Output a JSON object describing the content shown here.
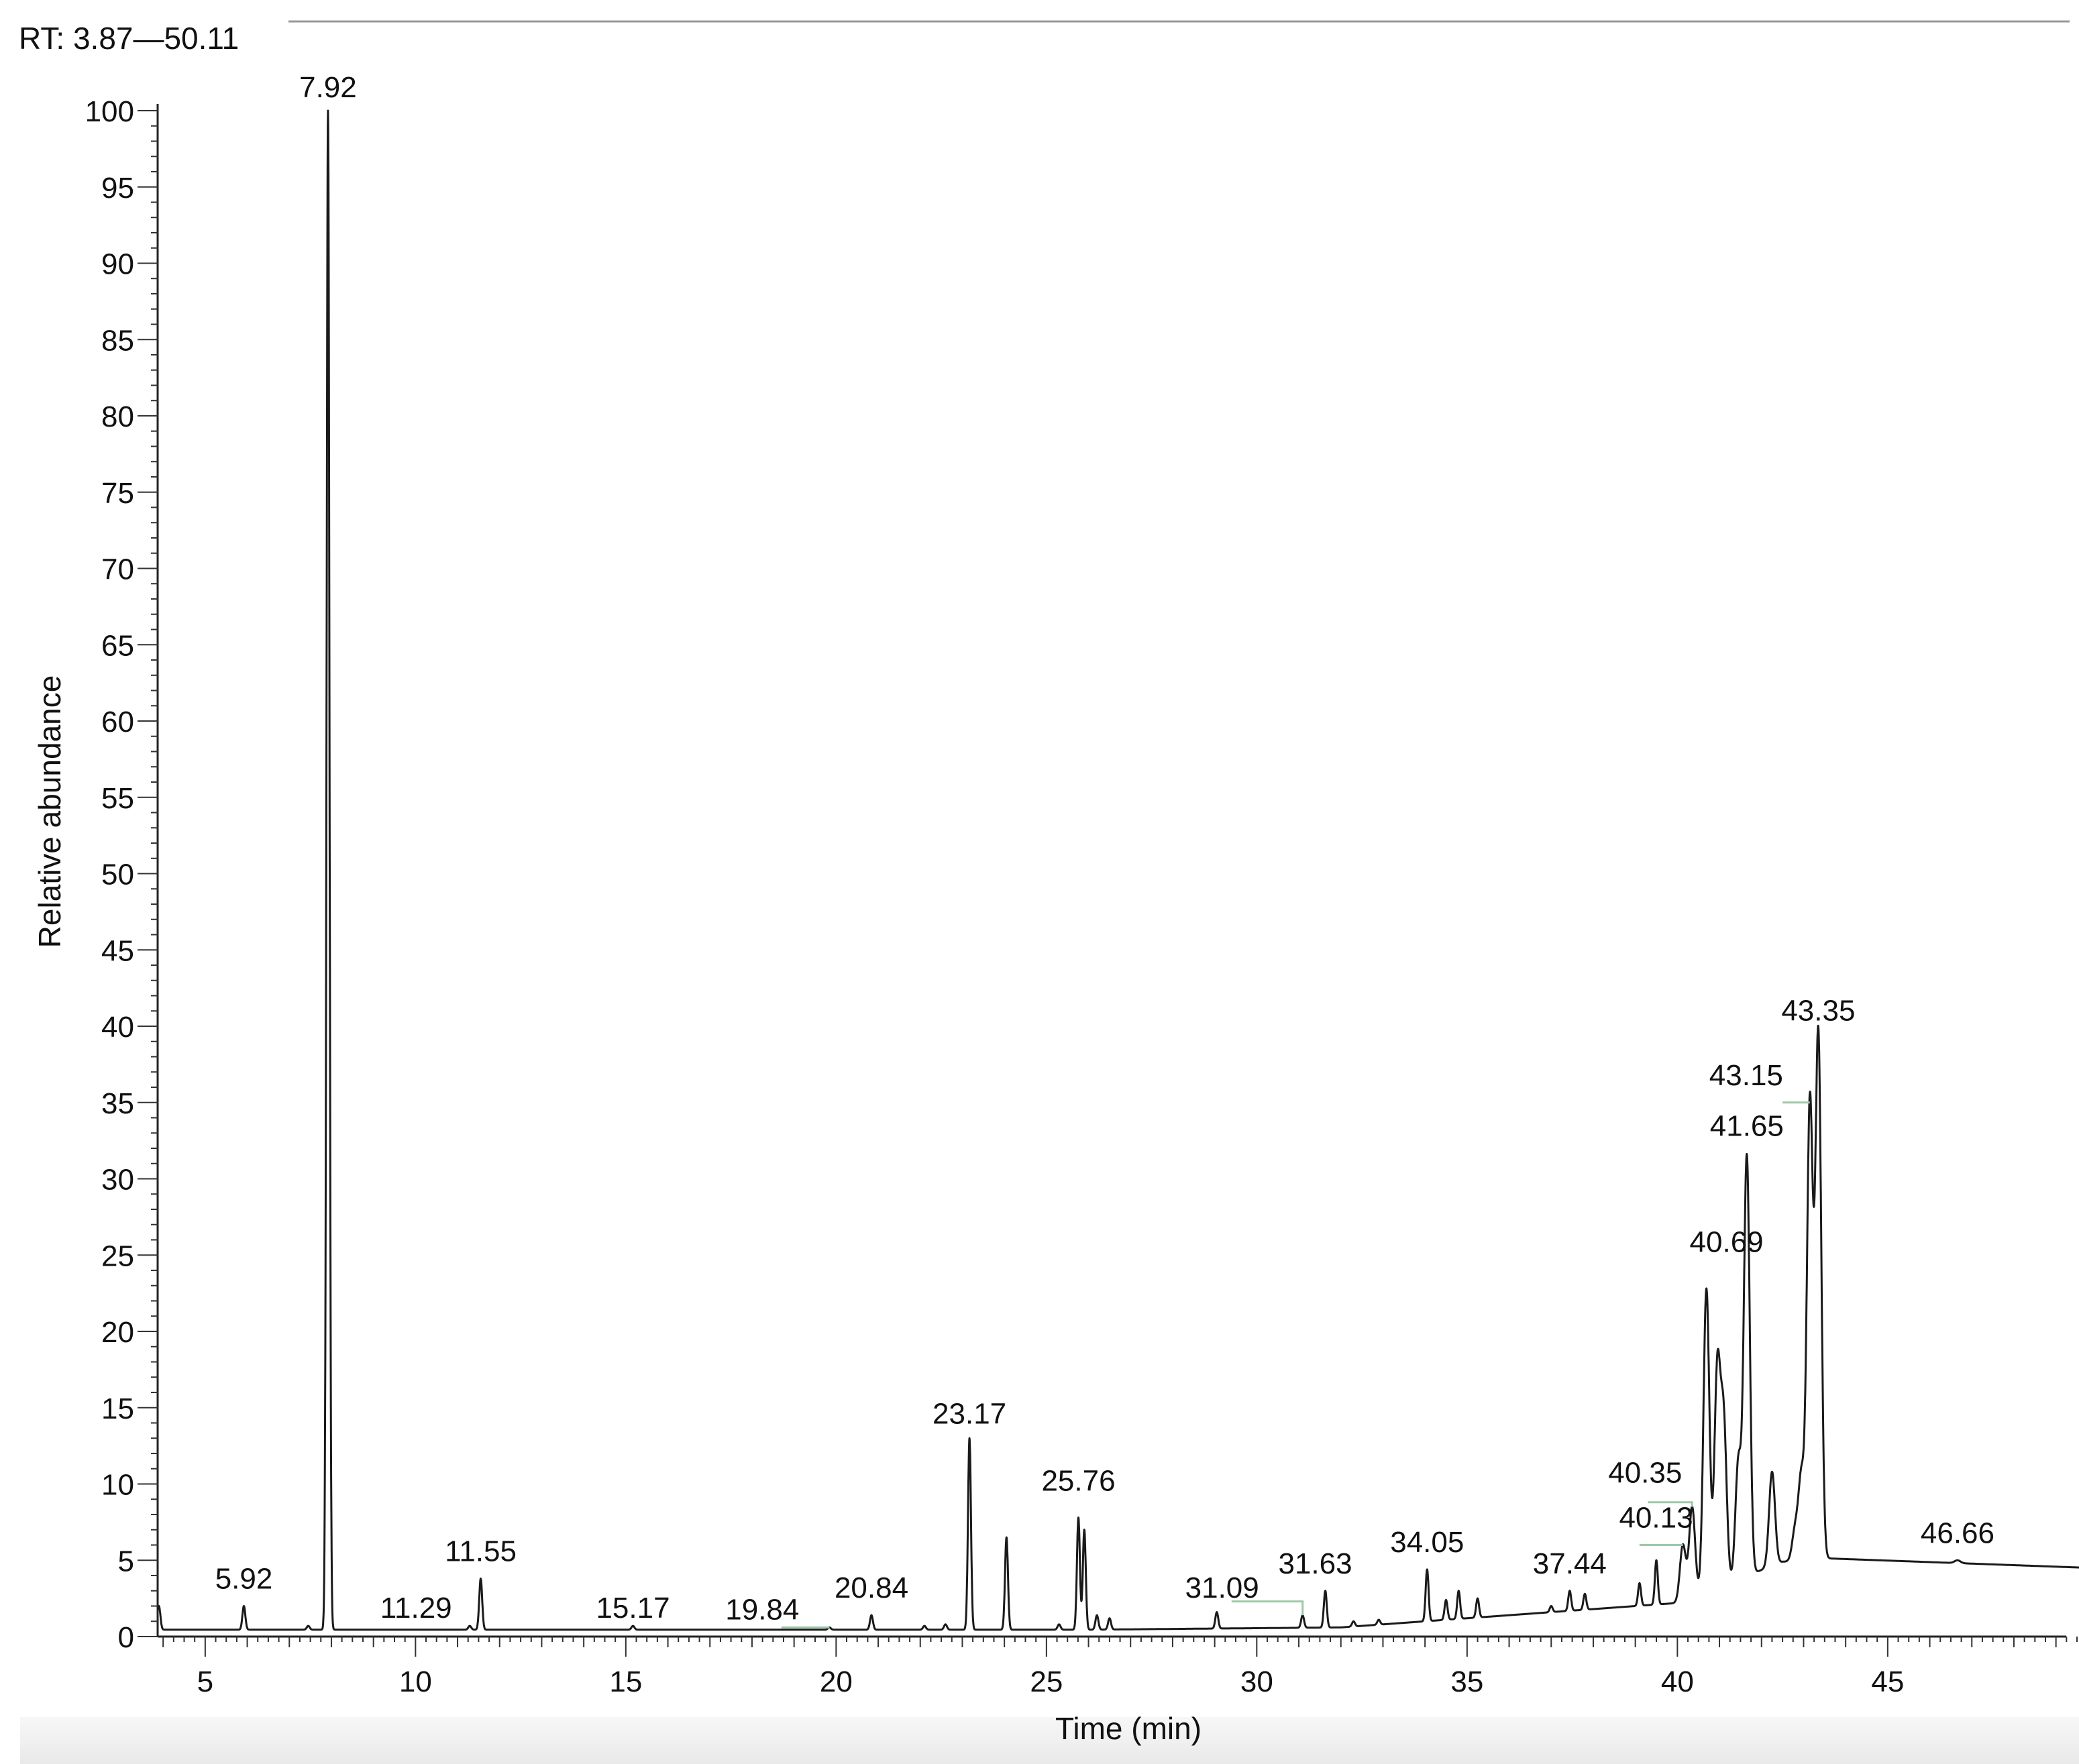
{
  "range_label": "RT: 3.87—50.11",
  "chart_data": {
    "type": "line",
    "title": "",
    "xlabel": "Time (min)",
    "ylabel": "Relative abundance",
    "xlim": [
      3.87,
      49.6
    ],
    "ylim": [
      0,
      100
    ],
    "x_ticks": [
      "5",
      "10",
      "15",
      "20",
      "25",
      "30",
      "35",
      "40",
      "45"
    ],
    "y_ticks": [
      "0",
      "5",
      "10",
      "15",
      "20",
      "25",
      "30",
      "35",
      "40",
      "45",
      "50",
      "55",
      "60",
      "65",
      "70",
      "75",
      "80",
      "85",
      "90",
      "95",
      "100"
    ],
    "grid": false,
    "legend": "none",
    "line_color": "#1a1a1a",
    "series": [
      {
        "peaks": [
          {
            "x": 3.9,
            "y": 2.0
          },
          {
            "x": 5.0,
            "y": 0.4
          },
          {
            "x": 5.92,
            "y": 2.0
          },
          {
            "x": 7.45,
            "y": 0.7
          },
          {
            "x": 7.92,
            "y": 100
          },
          {
            "x": 11.29,
            "y": 0.7
          },
          {
            "x": 11.55,
            "y": 3.8
          },
          {
            "x": 15.17,
            "y": 0.7
          },
          {
            "x": 19.84,
            "y": 0.6
          },
          {
            "x": 20.84,
            "y": 1.4
          },
          {
            "x": 22.1,
            "y": 0.7
          },
          {
            "x": 22.6,
            "y": 0.8
          },
          {
            "x": 23.17,
            "y": 13.0
          },
          {
            "x": 24.05,
            "y": 6.5
          },
          {
            "x": 25.3,
            "y": 0.8
          },
          {
            "x": 25.76,
            "y": 7.8
          },
          {
            "x": 25.9,
            "y": 7.0
          },
          {
            "x": 26.2,
            "y": 1.4
          },
          {
            "x": 26.5,
            "y": 1.2
          },
          {
            "x": 29.05,
            "y": 1.6
          },
          {
            "x": 31.09,
            "y": 1.4
          },
          {
            "x": 31.63,
            "y": 3.0
          },
          {
            "x": 32.3,
            "y": 1.0
          },
          {
            "x": 32.9,
            "y": 1.1
          },
          {
            "x": 34.05,
            "y": 4.4
          },
          {
            "x": 34.5,
            "y": 2.4
          },
          {
            "x": 34.8,
            "y": 3.0
          },
          {
            "x": 35.25,
            "y": 2.5
          },
          {
            "x": 37.0,
            "y": 2.0
          },
          {
            "x": 37.44,
            "y": 3.0
          },
          {
            "x": 37.8,
            "y": 2.8
          },
          {
            "x": 39.1,
            "y": 3.5
          },
          {
            "x": 39.5,
            "y": 5.0
          },
          {
            "x": 40.13,
            "y": 6.0
          },
          {
            "x": 40.35,
            "y": 8.5
          },
          {
            "x": 40.69,
            "y": 22.8
          },
          {
            "x": 40.95,
            "y": 17.5
          },
          {
            "x": 41.1,
            "y": 14.0
          },
          {
            "x": 41.45,
            "y": 11.5
          },
          {
            "x": 41.65,
            "y": 31.5
          },
          {
            "x": 42.25,
            "y": 10.8
          },
          {
            "x": 42.8,
            "y": 7.0
          },
          {
            "x": 42.95,
            "y": 10.5
          },
          {
            "x": 43.15,
            "y": 35.0
          },
          {
            "x": 43.35,
            "y": 39.5
          },
          {
            "x": 46.3,
            "y": 3.8
          },
          {
            "x": 46.66,
            "y": 5.0
          },
          {
            "x": 47.2,
            "y": 2.8
          },
          {
            "x": 48.3,
            "y": 2.2
          },
          {
            "x": 49.4,
            "y": 2.8
          }
        ]
      }
    ],
    "peak_labels": [
      {
        "text": "5.92",
        "x": 5.92,
        "y": 2.0
      },
      {
        "text": "7.92",
        "x": 7.92,
        "y": 100
      },
      {
        "text": "11.29",
        "x": 11.29,
        "y": 0.7
      },
      {
        "text": "11.55",
        "x": 11.55,
        "y": 3.8
      },
      {
        "text": "15.17",
        "x": 15.17,
        "y": 0.7
      },
      {
        "text": "19.84",
        "x": 19.84,
        "y": 0.6
      },
      {
        "text": "20.84",
        "x": 20.84,
        "y": 1.4
      },
      {
        "text": "23.17",
        "x": 23.17,
        "y": 13.0
      },
      {
        "text": "25.76",
        "x": 25.76,
        "y": 7.8
      },
      {
        "text": "31.09",
        "x": 31.09,
        "y": 1.4
      },
      {
        "text": "31.63",
        "x": 31.63,
        "y": 3.0
      },
      {
        "text": "34.05",
        "x": 34.05,
        "y": 4.4
      },
      {
        "text": "37.44",
        "x": 37.44,
        "y": 3.0
      },
      {
        "text": "40.13",
        "x": 40.13,
        "y": 6.0
      },
      {
        "text": "40.35",
        "x": 40.35,
        "y": 8.5
      },
      {
        "text": "40.69",
        "x": 40.69,
        "y": 22.8
      },
      {
        "text": "41.65",
        "x": 41.65,
        "y": 31.5
      },
      {
        "text": "43.15",
        "x": 43.15,
        "y": 35.0
      },
      {
        "text": "43.35",
        "x": 43.35,
        "y": 39.5
      },
      {
        "text": "46.66",
        "x": 46.66,
        "y": 5.0
      }
    ]
  }
}
